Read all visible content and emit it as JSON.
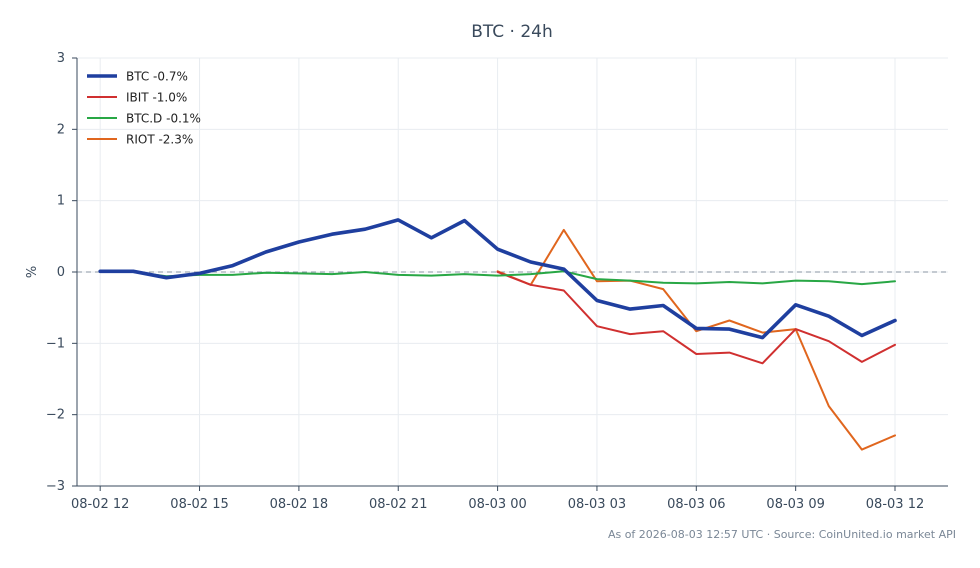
{
  "chart_data": {
    "type": "line",
    "title": "BTC · 24h",
    "xlabel": "",
    "ylabel": "%",
    "ylim": [
      -3,
      3
    ],
    "yticks": [
      "−3",
      "−2",
      "−1",
      "0",
      "1",
      "2",
      "3"
    ],
    "xticks": [
      "08-02 12",
      "08-02 15",
      "08-02 18",
      "08-02 21",
      "08-03 00",
      "08-03 03",
      "08-03 06",
      "08-03 09",
      "08-03 12"
    ],
    "grid": true,
    "legend_position": "top-left",
    "x_range_hours": [
      -0.7,
      25.6
    ],
    "baseline": 0,
    "footer": "As of 2026-08-03 12:57 UTC · Source: CoinUnited.io market API",
    "series": [
      {
        "name": "BTC -0.7%",
        "color": "#1f3f9f",
        "x_hours": [
          0,
          1,
          2,
          3,
          4,
          5,
          6,
          7,
          8,
          9,
          10,
          11,
          12,
          13,
          14,
          15,
          16,
          17,
          18,
          19,
          20,
          21,
          22,
          23,
          24
        ],
        "values": [
          0.01,
          0.01,
          -0.08,
          -0.02,
          0.09,
          0.28,
          0.42,
          0.53,
          0.6,
          0.73,
          0.48,
          0.72,
          0.32,
          0.14,
          0.04,
          -0.4,
          -0.52,
          -0.47,
          -0.79,
          -0.8,
          -0.92,
          -0.46,
          -0.62,
          -0.89,
          -0.68
        ]
      },
      {
        "name": "IBIT -1.0%",
        "color": "#d03030",
        "x_hours": [
          12,
          13,
          14,
          15,
          16,
          17,
          18,
          19,
          20,
          21,
          22,
          23,
          24
        ],
        "values": [
          0.0,
          -0.18,
          -0.26,
          -0.76,
          -0.87,
          -0.83,
          -1.15,
          -1.13,
          -1.28,
          -0.8,
          -0.97,
          -1.26,
          -1.02
        ]
      },
      {
        "name": "BTC.D -0.1%",
        "color": "#28a745",
        "x_hours": [
          0,
          1,
          2,
          3,
          4,
          5,
          6,
          7,
          8,
          9,
          10,
          11,
          12,
          13,
          14,
          15,
          16,
          17,
          18,
          19,
          20,
          21,
          22,
          23,
          24
        ],
        "values": [
          0.0,
          0.0,
          -0.06,
          -0.04,
          -0.04,
          -0.01,
          -0.02,
          -0.03,
          0.0,
          -0.04,
          -0.05,
          -0.03,
          -0.05,
          -0.03,
          0.01,
          -0.1,
          -0.12,
          -0.15,
          -0.16,
          -0.14,
          -0.16,
          -0.12,
          -0.13,
          -0.17,
          -0.13
        ]
      },
      {
        "name": "RIOT -2.3%",
        "color": "#e0661e",
        "x_hours": [
          12,
          13,
          14,
          15,
          16,
          17,
          18,
          19,
          20,
          21,
          22,
          23,
          24
        ],
        "values": [
          0.01,
          -0.18,
          0.59,
          -0.13,
          -0.12,
          -0.24,
          -0.83,
          -0.68,
          -0.85,
          -0.8,
          -1.88,
          -2.49,
          -2.29
        ]
      }
    ]
  }
}
